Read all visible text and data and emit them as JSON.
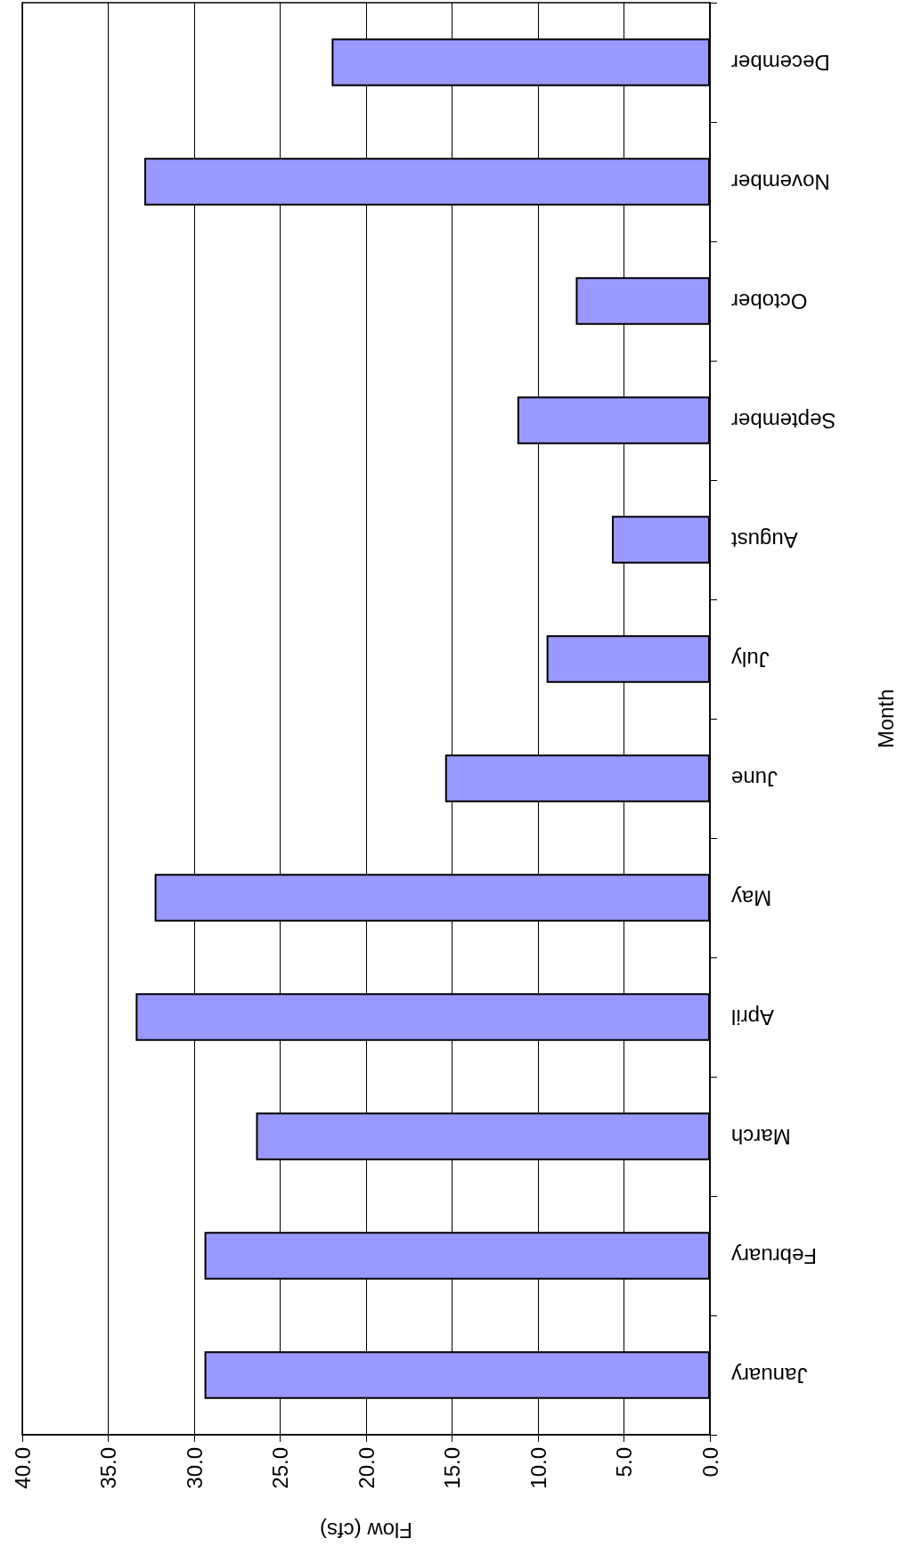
{
  "chart_data": {
    "type": "bar",
    "orientation": "horizontal",
    "xlabel": "Flow (cfs)",
    "ylabel": "Month",
    "categories": [
      "December",
      "November",
      "October",
      "September",
      "August",
      "July",
      "June",
      "May",
      "April",
      "March",
      "February",
      "January"
    ],
    "values": [
      22.0,
      32.9,
      7.8,
      11.2,
      5.7,
      9.5,
      15.4,
      32.3,
      33.4,
      26.4,
      29.4,
      29.4
    ],
    "color": "#9999ff",
    "xlim": [
      40,
      0
    ],
    "xticks": [
      {
        "value": 0,
        "label": "0.0"
      },
      {
        "value": 5,
        "label": "5.0"
      },
      {
        "value": 10,
        "label": "10.0"
      },
      {
        "value": 15,
        "label": "15.0"
      },
      {
        "value": 20,
        "label": "20.0"
      },
      {
        "value": 25,
        "label": "25.0"
      },
      {
        "value": 30,
        "label": "30.0"
      },
      {
        "value": 35,
        "label": "35.0"
      },
      {
        "value": 40,
        "label": "40.0"
      }
    ],
    "grid": "x"
  }
}
